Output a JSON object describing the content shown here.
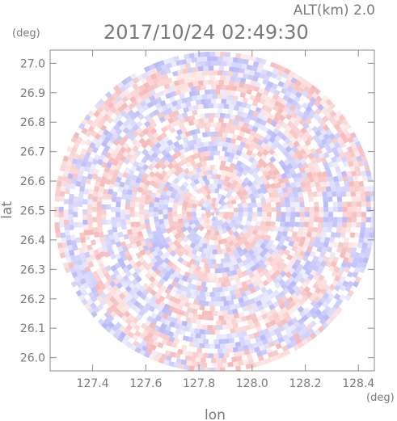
{
  "header": {
    "alt_label": "ALT(km) 2.0",
    "timestamp": "2017/10/24 02:49:30"
  },
  "chart_data": {
    "type": "heatmap",
    "title": "2017/10/24 02:49:30",
    "subtitle": "ALT(km) 2.0",
    "xlabel": "lon",
    "ylabel": "lat",
    "x_unit": "(deg)",
    "y_unit": "(deg)",
    "xlim": [
      127.24,
      128.46
    ],
    "ylim": [
      25.955,
      27.045
    ],
    "x_ticks": [
      127.4,
      127.6,
      127.8,
      128.0,
      128.2,
      128.4
    ],
    "x_tick_labels": [
      "127.4",
      "127.6",
      "127.8",
      "128.0",
      "128.2",
      "128.4"
    ],
    "y_ticks": [
      27.0,
      26.9,
      26.8,
      26.7,
      26.6,
      26.5,
      26.4,
      26.3,
      26.2,
      26.1,
      26.0
    ],
    "y_tick_labels": [
      "27.0",
      "26.9",
      "26.8",
      "26.7",
      "26.6",
      "26.5",
      "26.4",
      "26.3",
      "26.2",
      "26.1",
      "26.0"
    ],
    "radar_center": {
      "lon": 127.86,
      "lat": 26.495
    },
    "radar_range_deg": {
      "lon": 0.605,
      "lat": 0.545
    },
    "colors": {
      "positive": "#f08a8a",
      "negative": "#8a8af5",
      "neutral": "#ffffff",
      "axis": "#8c8c8c"
    }
  }
}
